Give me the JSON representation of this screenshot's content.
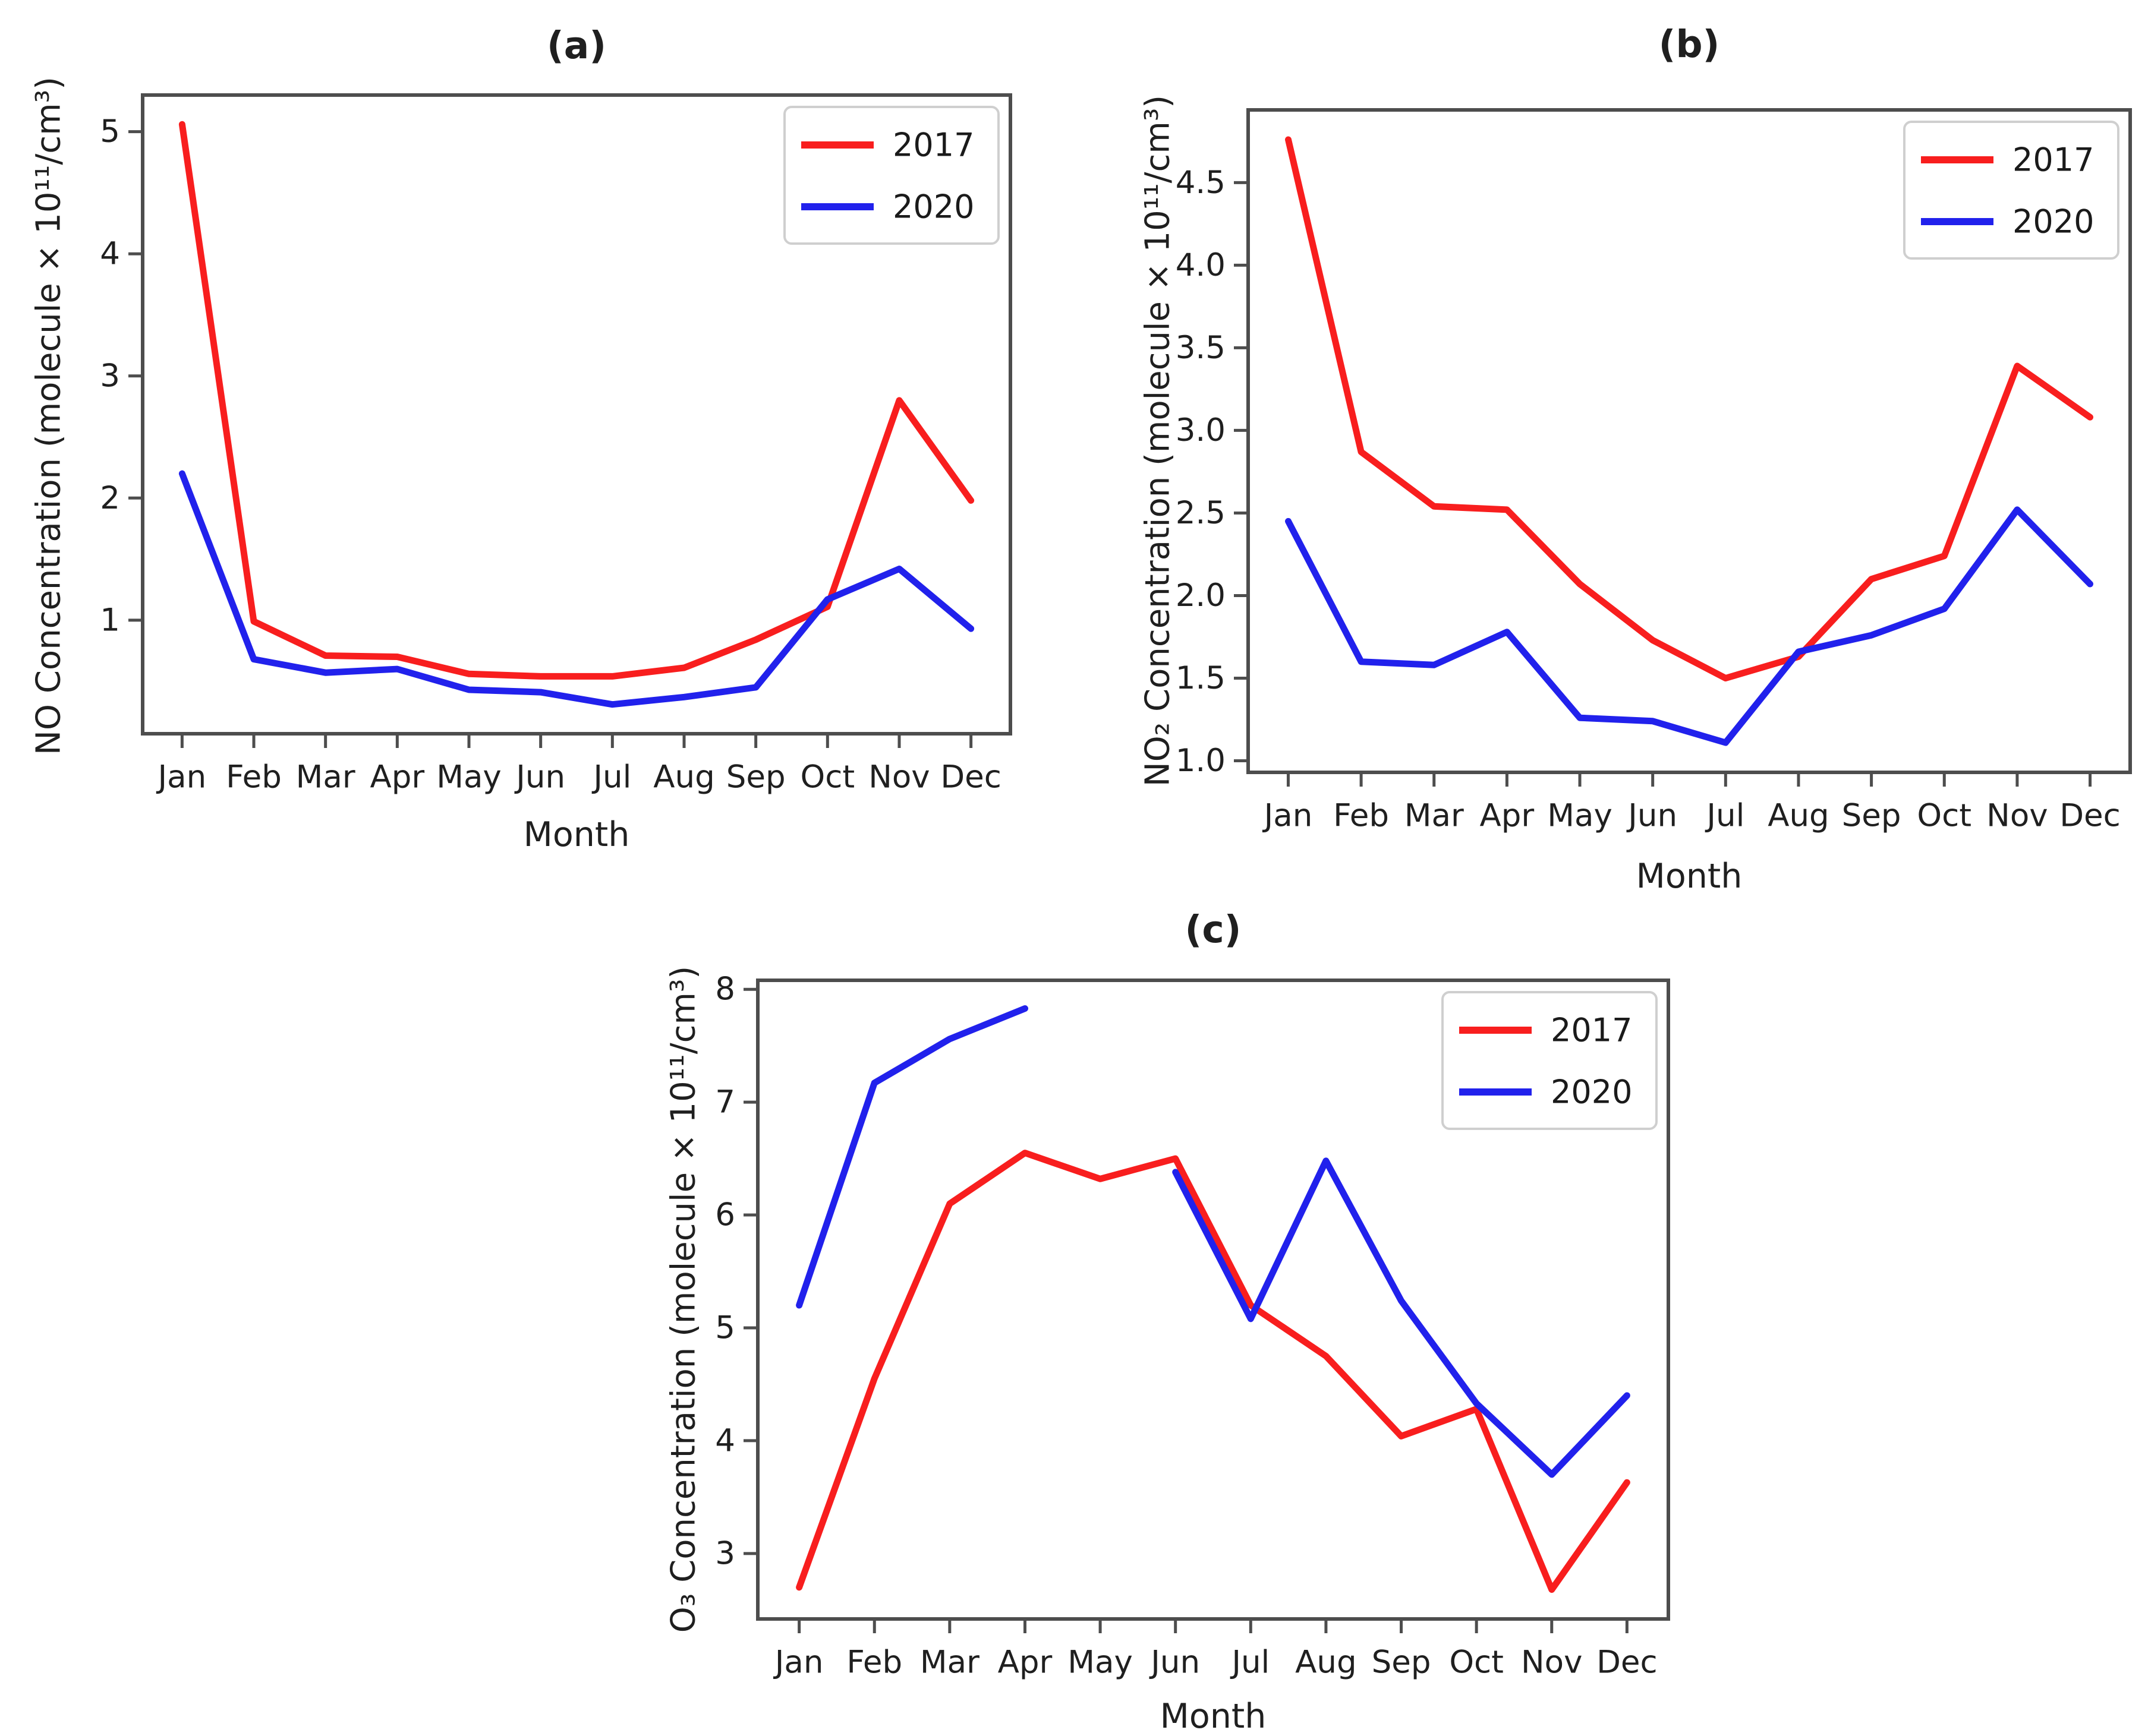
{
  "page": {
    "background": "#ffffff"
  },
  "style": {
    "spine_color": "#4d4d4d",
    "tick_color": "#4d4d4d",
    "text_color": "#1f1f1f",
    "legend_border_color": "#cfcfcf",
    "series_2017_color": "#f81e1e",
    "series_2020_color": "#2121ec"
  },
  "chart_data": [
    {
      "id": "a",
      "type": "line",
      "title": "(a)",
      "xlabel": "Month",
      "ylabel": "NO Concentration (molecule × 10¹¹/cm³)",
      "categories": [
        "Jan",
        "Feb",
        "Mar",
        "Apr",
        "May",
        "Jun",
        "Jul",
        "Aug",
        "Sep",
        "Oct",
        "Nov",
        "Dec"
      ],
      "yticks": [
        1,
        2,
        3,
        4,
        5
      ],
      "ytick_labels": [
        "1",
        "2",
        "3",
        "4",
        "5"
      ],
      "ylim": [
        0.07,
        5.3
      ],
      "grid": false,
      "legend_position": "top-right",
      "series": [
        {
          "name": "2017",
          "color": "#f81e1e",
          "values": [
            5.06,
            0.99,
            0.71,
            0.7,
            0.56,
            0.54,
            0.54,
            0.61,
            0.84,
            1.11,
            2.8,
            1.98
          ]
        },
        {
          "name": "2020",
          "color": "#2121ec",
          "values": [
            2.2,
            0.68,
            0.57,
            0.6,
            0.43,
            0.41,
            0.31,
            0.37,
            0.45,
            1.17,
            1.42,
            0.93
          ]
        }
      ]
    },
    {
      "id": "b",
      "type": "line",
      "title": "(b)",
      "xlabel": "Month",
      "ylabel": "NO₂ Concentration (molecule × 10¹¹/cm³)",
      "categories": [
        "Jan",
        "Feb",
        "Mar",
        "Apr",
        "May",
        "Jun",
        "Jul",
        "Aug",
        "Sep",
        "Oct",
        "Nov",
        "Dec"
      ],
      "yticks": [
        1.0,
        1.5,
        2.0,
        2.5,
        3.0,
        3.5,
        4.0,
        4.5
      ],
      "ytick_labels": [
        "1.0",
        "1.5",
        "2.0",
        "2.5",
        "3.0",
        "3.5",
        "4.0",
        "4.5"
      ],
      "ylim": [
        0.93,
        4.94
      ],
      "grid": false,
      "legend_position": "top-right",
      "series": [
        {
          "name": "2017",
          "color": "#f81e1e",
          "values": [
            4.76,
            2.87,
            2.54,
            2.52,
            2.07,
            1.73,
            1.5,
            1.63,
            2.1,
            2.24,
            3.39,
            3.08
          ]
        },
        {
          "name": "2020",
          "color": "#2121ec",
          "values": [
            2.45,
            1.6,
            1.58,
            1.78,
            1.26,
            1.24,
            1.11,
            1.66,
            1.76,
            1.92,
            2.52,
            2.07
          ]
        }
      ]
    },
    {
      "id": "c",
      "type": "line",
      "title": "(c)",
      "xlabel": "Month",
      "ylabel": "O₃ Concentration (molecule × 10¹¹/cm³)",
      "categories": [
        "Jan",
        "Feb",
        "Mar",
        "Apr",
        "May",
        "Jun",
        "Jul",
        "Aug",
        "Sep",
        "Oct",
        "Nov",
        "Dec"
      ],
      "yticks": [
        3,
        4,
        5,
        6,
        7,
        8
      ],
      "ytick_labels": [
        "3",
        "4",
        "5",
        "6",
        "7",
        "8"
      ],
      "ylim": [
        2.42,
        8.08
      ],
      "grid": false,
      "legend_position": "top-right",
      "series": [
        {
          "name": "2017",
          "color": "#f81e1e",
          "values": [
            2.7,
            4.55,
            6.1,
            6.55,
            6.32,
            6.5,
            5.2,
            4.75,
            4.04,
            4.28,
            2.68,
            3.63
          ]
        },
        {
          "name": "2020",
          "color": "#2121ec",
          "values": [
            5.2,
            7.17,
            7.56,
            7.83,
            null,
            6.38,
            5.08,
            6.48,
            5.24,
            4.33,
            3.7,
            4.4
          ]
        }
      ]
    }
  ]
}
